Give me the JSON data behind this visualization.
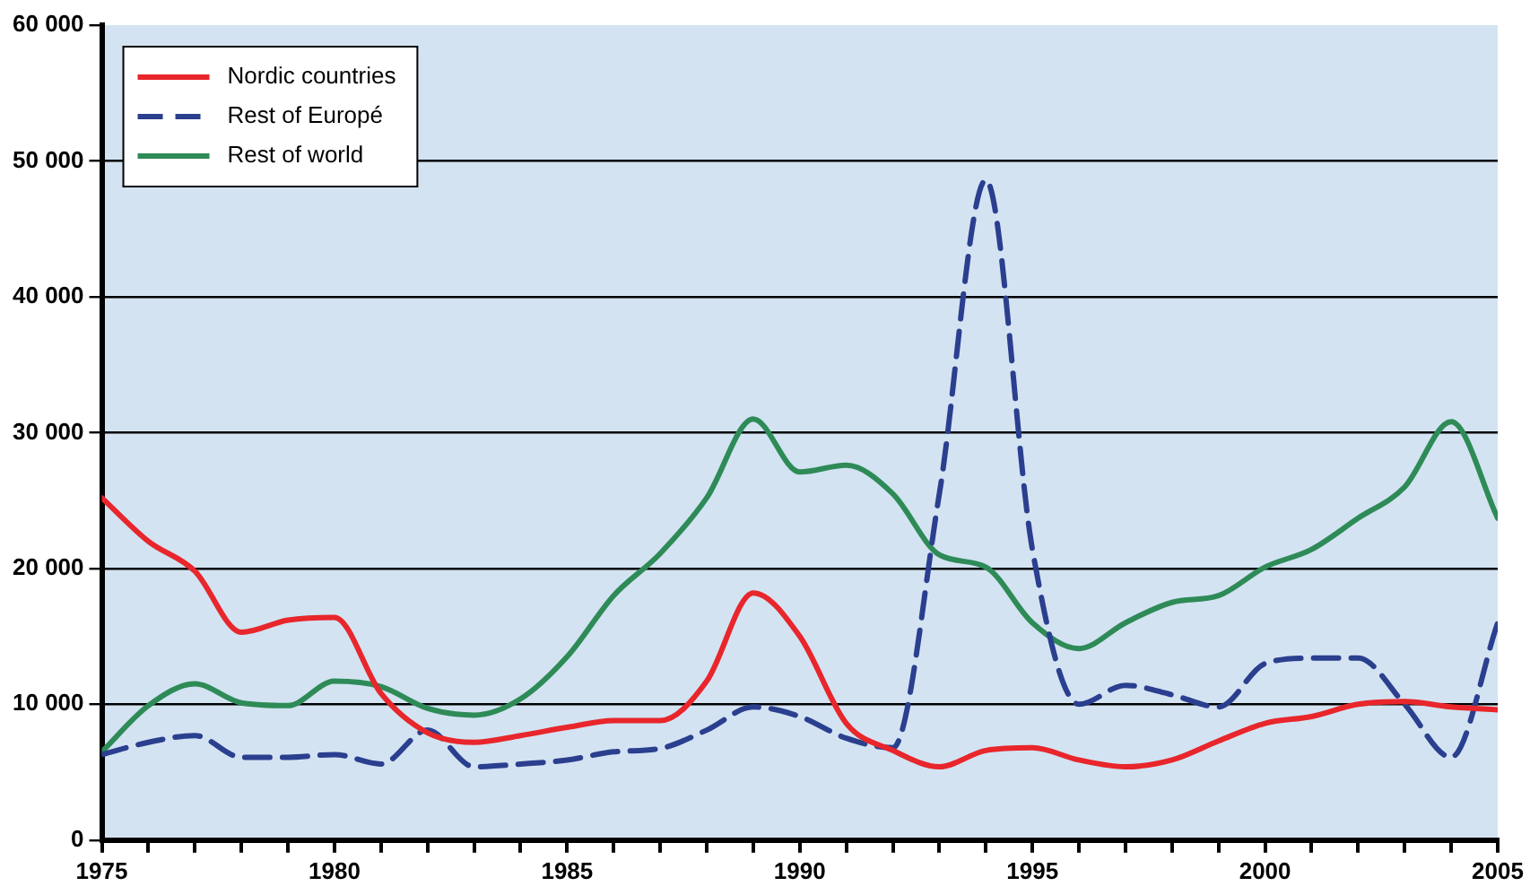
{
  "chart_data": {
    "type": "line",
    "x": [
      1975,
      1976,
      1977,
      1978,
      1979,
      1980,
      1981,
      1982,
      1983,
      1984,
      1985,
      1986,
      1987,
      1988,
      1989,
      1990,
      1991,
      1992,
      1993,
      1994,
      1995,
      1996,
      1997,
      1998,
      1999,
      2000,
      2001,
      2002,
      2003,
      2004,
      2005
    ],
    "series": [
      {
        "name": "Nordic countries",
        "color": "#e8262b",
        "line_style": "solid",
        "values": [
          25200,
          22000,
          19800,
          15300,
          16200,
          16400,
          10800,
          7900,
          7200,
          7700,
          8300,
          8800,
          8800,
          11700,
          18200,
          15000,
          8600,
          6600,
          5400,
          6600,
          6800,
          5900,
          5400,
          5900,
          7300,
          8600,
          9100,
          10000,
          10200,
          9800,
          9600
        ]
      },
      {
        "name": "Rest of Europé",
        "color": "#2b3f8f",
        "line_style": "dashed",
        "values": [
          6300,
          7200,
          7700,
          6100,
          6100,
          6300,
          5600,
          8100,
          5400,
          5600,
          5900,
          6500,
          6750,
          8100,
          9800,
          9100,
          7500,
          6800,
          25500,
          48600,
          21400,
          10000,
          11400,
          10700,
          9800,
          13000,
          13400,
          13400,
          10000,
          6100,
          16000
        ]
      },
      {
        "name": "Rest of world",
        "color": "#2e8b57",
        "line_style": "solid",
        "values": [
          6500,
          9900,
          11500,
          10100,
          9900,
          11700,
          11300,
          9700,
          9200,
          10400,
          13500,
          18000,
          21100,
          25200,
          31000,
          27100,
          27600,
          25500,
          21000,
          20100,
          16000,
          14100,
          16000,
          17500,
          18000,
          20100,
          21400,
          23700,
          26000,
          30800,
          23700
        ]
      }
    ],
    "xlim": [
      1975,
      2005
    ],
    "xticks": [
      1975,
      {
        "value": 1976,
        "label": null
      },
      {
        "value": 1977,
        "label": null
      },
      {
        "value": 1978,
        "label": null
      },
      {
        "value": 1979,
        "label": null
      },
      1980,
      {
        "value": 1981,
        "label": null
      },
      {
        "value": 1982,
        "label": null
      },
      {
        "value": 1983,
        "label": null
      },
      {
        "value": 1984,
        "label": null
      },
      1985,
      {
        "value": 1986,
        "label": null
      },
      {
        "value": 1987,
        "label": null
      },
      {
        "value": 1988,
        "label": null
      },
      {
        "value": 1989,
        "label": null
      },
      1990,
      {
        "value": 1991,
        "label": null
      },
      {
        "value": 1992,
        "label": null
      },
      {
        "value": 1993,
        "label": null
      },
      {
        "value": 1994,
        "label": null
      },
      1995,
      {
        "value": 1996,
        "label": null
      },
      {
        "value": 1997,
        "label": null
      },
      {
        "value": 1998,
        "label": null
      },
      {
        "value": 1999,
        "label": null
      },
      2000,
      {
        "value": 2001,
        "label": null
      },
      {
        "value": 2002,
        "label": null
      },
      {
        "value": 2003,
        "label": null
      },
      {
        "value": 2004,
        "label": null
      },
      2005
    ],
    "ylim": [
      0,
      60000
    ],
    "yticks": [
      0,
      {
        "value": 10000,
        "label": "10 000"
      },
      {
        "value": 20000,
        "label": "20 000"
      },
      {
        "value": 30000,
        "label": "30 000"
      },
      {
        "value": 40000,
        "label": "40 000"
      },
      {
        "value": 50000,
        "label": "50 000"
      },
      {
        "value": 60000,
        "label": "60 000"
      }
    ],
    "grid": "y",
    "legend": "top left",
    "marker": "none"
  }
}
